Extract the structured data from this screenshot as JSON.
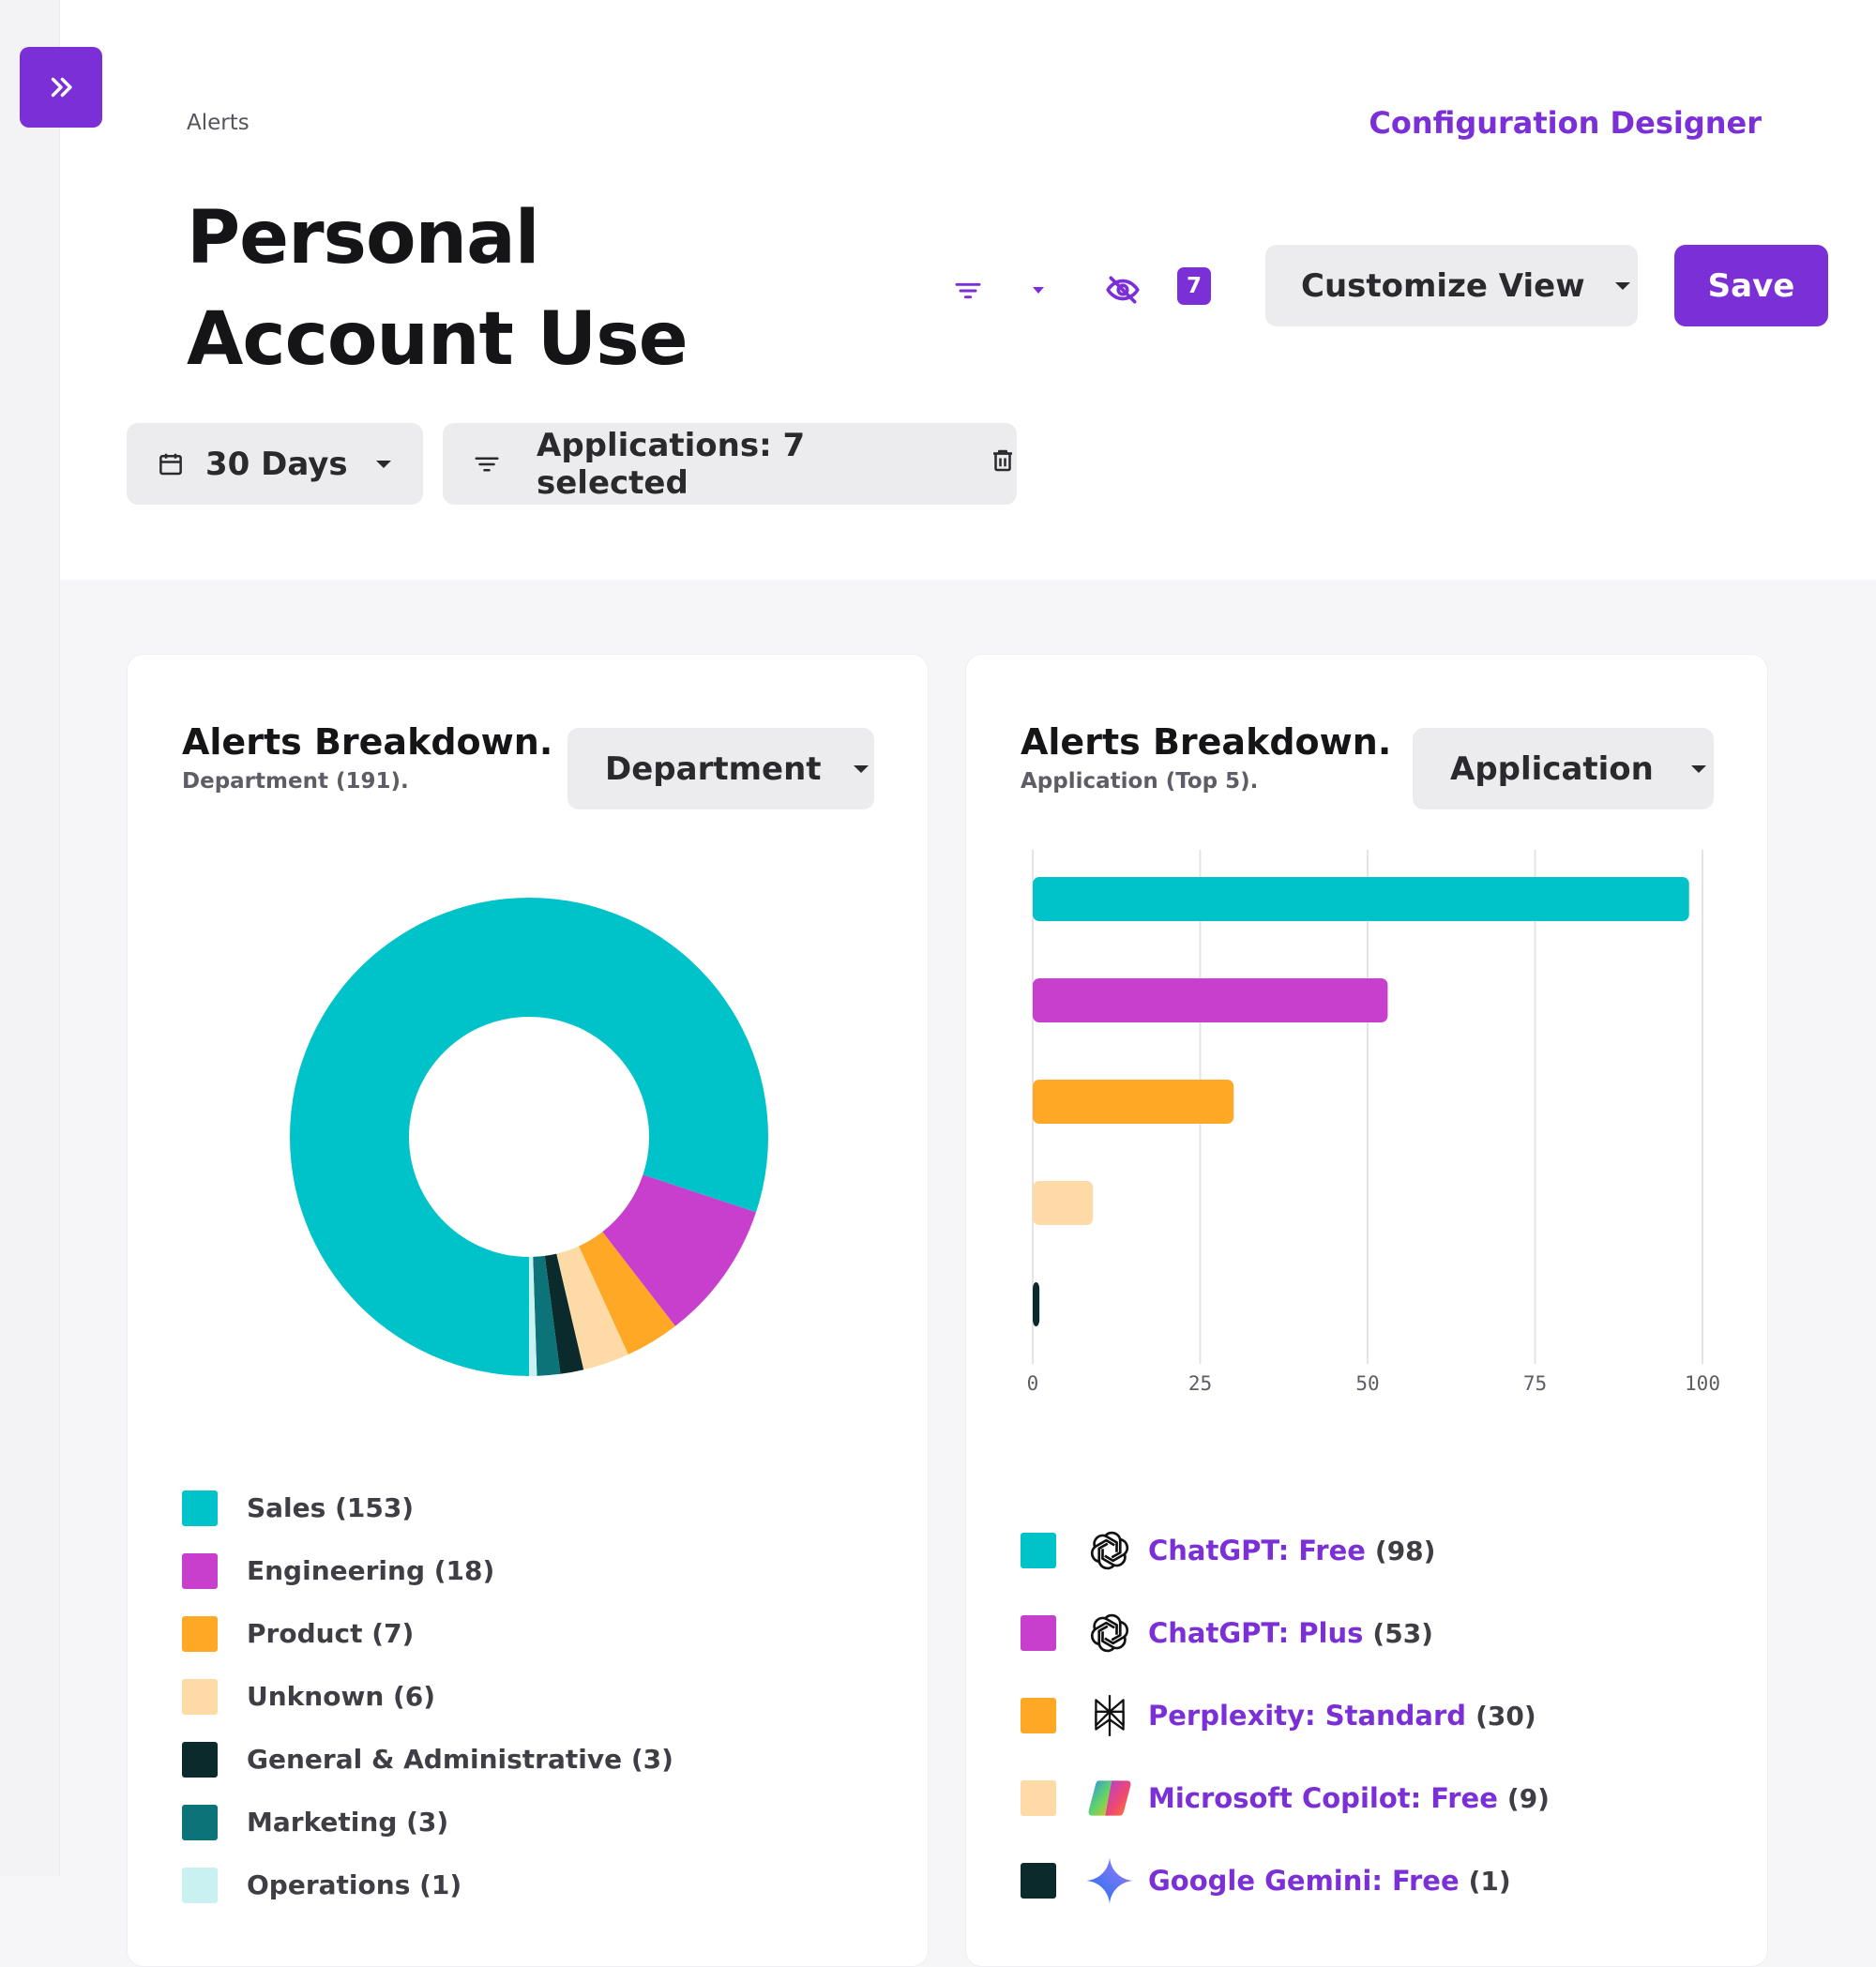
{
  "header": {
    "breadcrumb": "Alerts",
    "title": "Personal Account Use",
    "config_link": "Configuration Designer",
    "badge_count": "7",
    "customize_label": "Customize View",
    "save_label": "Save"
  },
  "filters": {
    "date_range": "30 Days",
    "applications": "Applications: 7 selected"
  },
  "icons": {
    "expand": "double-chevron-right-icon",
    "filter": "filter-icon",
    "hidden": "eye-off-icon",
    "calendar": "calendar-icon",
    "trash": "trash-icon"
  },
  "colors": {
    "accent": "#7b2fd6"
  },
  "dept_card": {
    "title": "Alerts Breakdown.",
    "subtitle": "Department (191).",
    "dropdown": "Department",
    "legend": [
      {
        "label": "Sales (153)",
        "color": "#00c2c9"
      },
      {
        "label": "Engineering (18)",
        "color": "#c73fcc"
      },
      {
        "label": "Product (7)",
        "color": "#ffa826"
      },
      {
        "label": "Unknown (6)",
        "color": "#fedaa6"
      },
      {
        "label": "General & Administrative (3)",
        "color": "#0a2a2b"
      },
      {
        "label": "Marketing (3)",
        "color": "#0c7378"
      },
      {
        "label": "Operations (1)",
        "color": "#c9f1f2"
      }
    ]
  },
  "app_card": {
    "title": "Alerts Breakdown.",
    "subtitle": "Application (Top 5).",
    "dropdown": "Application",
    "legend": [
      {
        "name": "ChatGPT: Free",
        "count": "(98)",
        "color": "#00c2c9",
        "logo": "openai-logo-icon"
      },
      {
        "name": "ChatGPT: Plus",
        "count": "(53)",
        "color": "#c73fcc",
        "logo": "openai-logo-icon"
      },
      {
        "name": "Perplexity: Standard",
        "count": "(30)",
        "color": "#ffa826",
        "logo": "perplexity-logo-icon"
      },
      {
        "name": "Microsoft Copilot: Free",
        "count": "(9)",
        "color": "#fedaa6",
        "logo": "copilot-logo-icon"
      },
      {
        "name": "Google Gemini: Free",
        "count": "(1)",
        "color": "#0a2a2b",
        "logo": "gemini-logo-icon"
      }
    ]
  },
  "chart_data": [
    {
      "type": "pie",
      "variant": "donut",
      "categories": [
        "Sales",
        "Engineering",
        "Product",
        "Unknown",
        "General & Administrative",
        "Marketing",
        "Operations"
      ],
      "values": [
        153,
        18,
        7,
        6,
        3,
        3,
        1
      ],
      "colors": [
        "#00c2c9",
        "#c73fcc",
        "#ffa826",
        "#fedaa6",
        "#0a2a2b",
        "#0c7378",
        "#c9f1f2"
      ]
    },
    {
      "type": "bar",
      "orientation": "horizontal",
      "categories": [
        "ChatGPT: Free",
        "ChatGPT: Plus",
        "Perplexity: Standard",
        "Microsoft Copilot: Free",
        "Google Gemini: Free"
      ],
      "values": [
        98,
        53,
        30,
        9,
        1
      ],
      "colors": [
        "#00c2c9",
        "#c73fcc",
        "#ffa826",
        "#fedaa6",
        "#0a2a2b"
      ],
      "xlim": [
        0,
        100
      ],
      "xticks": [
        0,
        25,
        50,
        75,
        100
      ],
      "grid": true
    }
  ]
}
